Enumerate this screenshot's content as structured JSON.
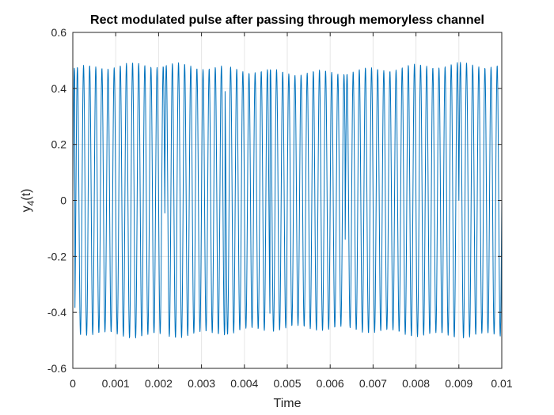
{
  "chart_data": {
    "type": "line",
    "title": "Rect modulated pulse after passing through memoryless channel",
    "xlabel": "Time",
    "ylabel": {
      "base": "y",
      "subscript": "4",
      "suffix": "(t)"
    },
    "xlim": [
      0,
      0.01
    ],
    "ylim": [
      -0.6,
      0.6
    ],
    "xticks": [
      0,
      0.001,
      0.002,
      0.003,
      0.004,
      0.005,
      0.006,
      0.007,
      0.008,
      0.009,
      0.01
    ],
    "xtick_labels": [
      "0",
      "0.001",
      "0.002",
      "0.003",
      "0.004",
      "0.005",
      "0.006",
      "0.007",
      "0.008",
      "0.009",
      "0.01"
    ],
    "yticks": [
      -0.6,
      -0.4,
      -0.2,
      0,
      0.2,
      0.4,
      0.6
    ],
    "ytick_labels": [
      "-0.6",
      "-0.4",
      "-0.2",
      "0",
      "0.2",
      "0.4",
      "0.6"
    ],
    "grid": true,
    "line_color": "#0072BD",
    "signal": {
      "description_fields_only": true,
      "frequency_hz": 7000,
      "amplitude": 0.47,
      "phase_flips_at": [
        5e-05,
        0.00215,
        0.00355,
        0.0046,
        0.00635,
        0.009
      ]
    }
  }
}
